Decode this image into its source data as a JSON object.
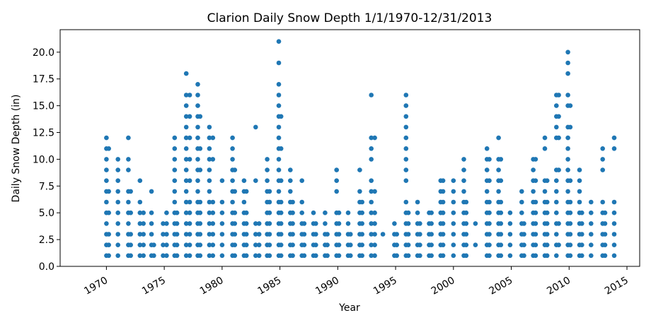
{
  "chart_data": {
    "type": "scatter",
    "title": "Clarion Daily Snow Depth 1/1/1970-12/31/2013",
    "xlabel": "Year",
    "ylabel": "Daily Snow Depth (in)",
    "xlim": [
      1966.0,
      2016.1
    ],
    "ylim": [
      0,
      22.1
    ],
    "grid": false,
    "legend": "none",
    "marker_color": "#1f77b4",
    "x_ticks": [
      1970,
      1975,
      1980,
      1985,
      1990,
      1995,
      2000,
      2005,
      2010,
      2015
    ],
    "x_tick_labels": [
      "1970",
      "1975",
      "1980",
      "1985",
      "1990",
      "1995",
      "2000",
      "2005",
      "2010",
      "2015"
    ],
    "y_ticks": [
      0,
      2.5,
      5,
      7.5,
      10,
      12.5,
      15,
      17.5,
      20
    ],
    "y_tick_labels": [
      "0.0",
      "2.5",
      "5.0",
      "7.5",
      "10.0",
      "12.5",
      "15.0",
      "17.5",
      "20.0"
    ],
    "series": [
      {
        "columns": [
          {
            "x": 1970.0,
            "y": [
              1,
              2,
              3,
              4,
              5,
              6,
              7,
              8,
              9,
              10,
              11,
              12
            ]
          },
          {
            "x": 1970.2,
            "y": [
              1,
              2,
              3,
              5,
              7,
              11
            ]
          },
          {
            "x": 1971.0,
            "y": [
              1,
              2,
              3,
              4,
              5,
              6,
              7,
              8,
              9,
              10
            ]
          },
          {
            "x": 1971.9,
            "y": [
              1,
              2,
              3,
              4,
              5,
              6,
              7,
              9,
              10,
              12
            ]
          },
          {
            "x": 1972.1,
            "y": [
              1,
              2,
              3,
              5,
              7
            ]
          },
          {
            "x": 1972.9,
            "y": [
              1,
              2,
              3,
              4,
              5,
              6,
              8
            ]
          },
          {
            "x": 1973.2,
            "y": [
              1,
              2,
              3,
              4,
              5
            ]
          },
          {
            "x": 1973.9,
            "y": [
              1,
              2,
              3,
              4,
              5,
              7
            ]
          },
          {
            "x": 1974.1,
            "y": [
              1,
              2
            ]
          },
          {
            "x": 1974.9,
            "y": [
              1,
              2,
              3,
              4
            ]
          },
          {
            "x": 1975.2,
            "y": [
              1,
              2,
              3,
              4,
              5
            ]
          },
          {
            "x": 1975.9,
            "y": [
              1,
              2,
              3,
              4,
              5,
              6,
              7,
              8,
              9,
              10,
              11,
              12
            ]
          },
          {
            "x": 1976.1,
            "y": [
              1,
              2,
              3,
              4,
              5
            ]
          },
          {
            "x": 1976.9,
            "y": [
              1,
              2,
              3,
              4,
              5,
              6,
              7,
              8,
              9,
              10,
              11,
              12,
              13,
              14,
              15,
              16,
              18
            ]
          },
          {
            "x": 1977.2,
            "y": [
              1,
              2,
              3,
              4,
              5,
              6,
              8,
              10,
              12,
              14,
              16
            ]
          },
          {
            "x": 1977.9,
            "y": [
              1,
              2,
              3,
              4,
              5,
              6,
              7,
              8,
              9,
              10,
              11,
              12,
              13,
              14,
              15,
              16,
              17
            ]
          },
          {
            "x": 1978.1,
            "y": [
              1,
              2,
              3,
              4,
              5,
              6,
              9,
              11,
              14
            ]
          },
          {
            "x": 1978.9,
            "y": [
              1,
              2,
              3,
              4,
              5,
              6,
              7,
              8,
              9,
              10,
              11,
              12,
              13
            ]
          },
          {
            "x": 1979.2,
            "y": [
              1,
              2,
              3,
              4,
              5,
              6,
              10,
              12
            ]
          },
          {
            "x": 1980.0,
            "y": [
              1,
              2,
              3,
              4,
              5,
              6,
              8
            ]
          },
          {
            "x": 1980.9,
            "y": [
              1,
              2,
              3,
              4,
              5,
              6,
              7,
              8,
              9,
              10,
              11,
              12
            ]
          },
          {
            "x": 1981.1,
            "y": [
              1,
              2,
              3,
              4,
              5,
              7,
              9
            ]
          },
          {
            "x": 1981.9,
            "y": [
              1,
              2,
              3,
              4,
              5,
              6,
              7,
              8
            ]
          },
          {
            "x": 1982.1,
            "y": [
              1,
              2,
              3,
              4,
              5,
              7
            ]
          },
          {
            "x": 1982.9,
            "y": [
              1,
              2,
              3,
              4,
              8,
              13
            ]
          },
          {
            "x": 1983.2,
            "y": [
              1,
              2,
              3,
              4
            ]
          },
          {
            "x": 1983.9,
            "y": [
              1,
              2,
              3,
              4,
              5,
              6,
              7,
              8,
              9,
              10
            ]
          },
          {
            "x": 1984.1,
            "y": [
              1,
              2,
              3,
              4,
              5,
              6,
              7
            ]
          },
          {
            "x": 1984.9,
            "y": [
              1,
              2,
              3,
              4,
              5,
              6,
              7,
              8,
              9,
              10,
              11,
              12,
              13,
              14,
              15,
              16,
              17,
              19,
              21
            ]
          },
          {
            "x": 1985.1,
            "y": [
              1,
              2,
              3,
              4,
              5,
              6,
              8,
              11,
              14
            ]
          },
          {
            "x": 1985.9,
            "y": [
              1,
              2,
              3,
              4,
              5,
              6,
              7,
              8,
              9
            ]
          },
          {
            "x": 1986.1,
            "y": [
              1,
              2,
              3,
              4,
              5,
              6
            ]
          },
          {
            "x": 1986.9,
            "y": [
              1,
              2,
              3,
              4,
              5,
              6,
              8
            ]
          },
          {
            "x": 1987.1,
            "y": [
              1,
              2,
              3,
              4
            ]
          },
          {
            "x": 1987.9,
            "y": [
              1,
              2,
              3,
              4,
              5
            ]
          },
          {
            "x": 1988.1,
            "y": [
              1,
              2,
              3,
              4
            ]
          },
          {
            "x": 1988.9,
            "y": [
              1,
              2,
              3,
              4,
              5
            ]
          },
          {
            "x": 1989.1,
            "y": [
              1,
              2,
              3
            ]
          },
          {
            "x": 1989.9,
            "y": [
              1,
              2,
              3,
              4,
              5,
              7,
              8,
              9
            ]
          },
          {
            "x": 1990.1,
            "y": [
              1,
              2,
              3,
              4,
              5
            ]
          },
          {
            "x": 1990.9,
            "y": [
              1,
              2,
              3,
              4,
              5
            ]
          },
          {
            "x": 1991.1,
            "y": [
              1,
              2,
              3
            ]
          },
          {
            "x": 1991.9,
            "y": [
              1,
              2,
              3,
              4,
              5,
              6,
              7,
              9
            ]
          },
          {
            "x": 1992.1,
            "y": [
              1,
              2,
              3,
              4,
              5,
              6
            ]
          },
          {
            "x": 1992.9,
            "y": [
              1,
              2,
              3,
              4,
              5,
              6,
              7,
              8,
              10,
              11,
              12,
              16
            ]
          },
          {
            "x": 1993.2,
            "y": [
              1,
              2,
              3,
              4,
              5,
              7,
              12
            ]
          },
          {
            "x": 1993.9,
            "y": [
              3
            ]
          },
          {
            "x": 1994.9,
            "y": [
              1,
              2,
              3,
              4
            ]
          },
          {
            "x": 1995.1,
            "y": [
              1,
              2,
              3
            ]
          },
          {
            "x": 1995.9,
            "y": [
              1,
              2,
              3,
              4,
              5,
              6,
              8,
              9,
              10,
              11,
              12,
              13,
              14,
              15,
              16
            ]
          },
          {
            "x": 1996.1,
            "y": [
              1,
              2,
              3,
              4,
              5
            ]
          },
          {
            "x": 1996.9,
            "y": [
              1,
              2,
              3,
              4,
              5,
              6
            ]
          },
          {
            "x": 1997.1,
            "y": [
              1,
              2,
              3,
              4
            ]
          },
          {
            "x": 1997.9,
            "y": [
              1,
              2,
              3,
              4,
              5
            ]
          },
          {
            "x": 1998.1,
            "y": [
              1,
              2,
              3,
              4,
              5
            ]
          },
          {
            "x": 1998.9,
            "y": [
              1,
              2,
              3,
              4,
              5,
              6,
              7,
              8
            ]
          },
          {
            "x": 1999.1,
            "y": [
              1,
              2,
              3,
              4,
              5,
              6,
              7,
              8
            ]
          },
          {
            "x": 2000.0,
            "y": [
              1,
              2,
              3,
              4,
              5,
              6,
              7,
              8
            ]
          },
          {
            "x": 2000.9,
            "y": [
              1,
              2,
              3,
              4,
              5,
              6,
              7,
              8,
              9,
              10
            ]
          },
          {
            "x": 2001.1,
            "y": [
              1,
              2,
              3,
              4,
              5,
              6
            ]
          },
          {
            "x": 2001.9,
            "y": [
              2,
              4
            ]
          },
          {
            "x": 2002.9,
            "y": [
              1,
              2,
              3,
              4,
              5,
              6,
              7,
              8,
              9,
              10,
              11
            ]
          },
          {
            "x": 2003.1,
            "y": [
              1,
              2,
              3,
              4,
              5,
              6,
              8,
              10
            ]
          },
          {
            "x": 2003.9,
            "y": [
              1,
              2,
              3,
              4,
              5,
              6,
              7,
              8,
              9,
              10,
              12
            ]
          },
          {
            "x": 2004.1,
            "y": [
              1,
              2,
              3,
              4,
              5,
              6,
              8,
              10
            ]
          },
          {
            "x": 2004.9,
            "y": [
              1,
              2,
              3,
              4,
              5
            ]
          },
          {
            "x": 2005.9,
            "y": [
              1,
              2,
              3,
              4,
              5,
              6,
              7
            ]
          },
          {
            "x": 2006.1,
            "y": [
              1,
              2,
              3,
              4
            ]
          },
          {
            "x": 2006.9,
            "y": [
              1,
              2,
              3,
              4,
              5,
              6,
              7,
              8,
              9,
              10
            ]
          },
          {
            "x": 2007.1,
            "y": [
              1,
              2,
              3,
              4,
              5,
              6,
              8,
              10
            ]
          },
          {
            "x": 2007.9,
            "y": [
              1,
              2,
              3,
              4,
              5,
              6,
              7,
              8,
              11,
              12
            ]
          },
          {
            "x": 2008.1,
            "y": [
              1,
              2,
              3,
              4,
              5,
              6,
              8
            ]
          },
          {
            "x": 2008.9,
            "y": [
              1,
              2,
              3,
              4,
              5,
              6,
              7,
              8,
              9,
              12,
              13,
              14,
              15,
              16
            ]
          },
          {
            "x": 2009.1,
            "y": [
              2,
              4,
              9,
              12,
              14,
              16
            ]
          },
          {
            "x": 2009.9,
            "y": [
              1,
              2,
              3,
              4,
              5,
              6,
              7,
              8,
              9,
              10,
              11,
              12,
              13,
              15,
              16,
              18,
              19,
              20
            ]
          },
          {
            "x": 2010.1,
            "y": [
              1,
              2,
              3,
              4,
              5,
              6,
              8,
              13,
              15
            ]
          },
          {
            "x": 2010.9,
            "y": [
              1,
              2,
              3,
              4,
              5,
              6,
              7,
              8,
              9
            ]
          },
          {
            "x": 2011.1,
            "y": [
              1,
              2,
              3,
              4,
              5
            ]
          },
          {
            "x": 2011.9,
            "y": [
              1,
              2,
              3,
              4,
              5,
              6
            ]
          },
          {
            "x": 2012.9,
            "y": [
              1,
              2,
              3,
              4,
              5,
              6,
              9,
              10,
              11
            ]
          },
          {
            "x": 2013.1,
            "y": [
              1,
              2,
              3,
              4,
              5
            ]
          },
          {
            "x": 2013.9,
            "y": [
              1,
              2,
              3,
              4,
              5,
              6,
              11,
              12
            ]
          }
        ]
      }
    ]
  }
}
